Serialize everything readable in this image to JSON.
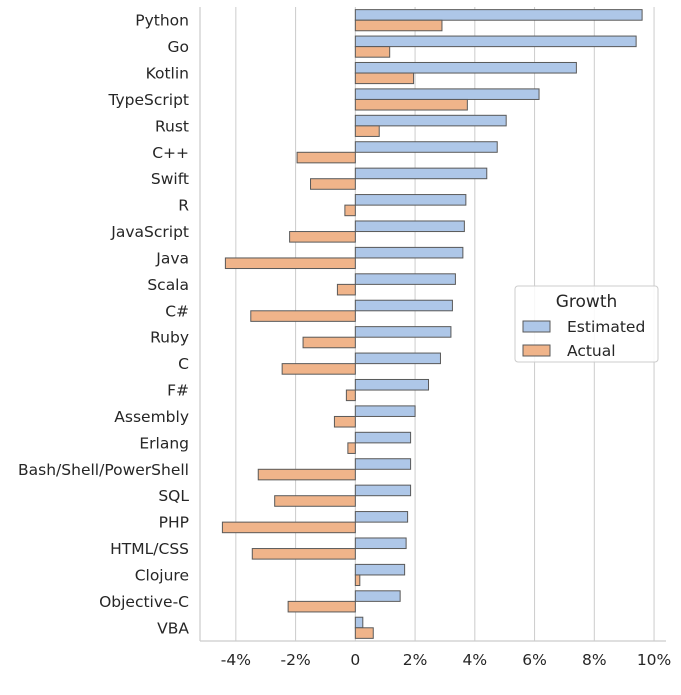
{
  "chart_data": {
    "type": "bar",
    "orientation": "horizontal",
    "categories": [
      "Python",
      "Go",
      "Kotlin",
      "TypeScript",
      "Rust",
      "C++",
      "Swift",
      "R",
      "JavaScript",
      "Java",
      "Scala",
      "C#",
      "Ruby",
      "C",
      "F#",
      "Assembly",
      "Erlang",
      "Bash/Shell/PowerShell",
      "SQL",
      "PHP",
      "HTML/CSS",
      "Clojure",
      "Objective-C",
      "VBA"
    ],
    "series": [
      {
        "name": "Estimated",
        "color": "#aec7e8",
        "values": [
          9.6,
          9.4,
          7.4,
          6.15,
          5.05,
          4.75,
          4.4,
          3.7,
          3.65,
          3.6,
          3.35,
          3.25,
          3.2,
          2.85,
          2.45,
          2.0,
          1.85,
          1.85,
          1.85,
          1.75,
          1.7,
          1.65,
          1.5,
          0.25
        ]
      },
      {
        "name": "Actual",
        "color": "#f0b48a",
        "values": [
          2.9,
          1.15,
          1.95,
          3.75,
          0.8,
          -1.95,
          -1.5,
          -0.35,
          -2.2,
          -4.35,
          -0.6,
          -3.5,
          -1.75,
          -2.45,
          -0.3,
          -0.7,
          -0.25,
          -3.25,
          -2.7,
          -4.45,
          -3.45,
          0.15,
          -2.25,
          0.6
        ]
      }
    ],
    "xlim": [
      -5.2,
      10.4
    ],
    "xticks": [
      -4,
      -2,
      0,
      2,
      4,
      6,
      8,
      10
    ],
    "xtick_labels": [
      "-4%",
      "-2%",
      "0",
      "2%",
      "4%",
      "6%",
      "8%",
      "10%"
    ],
    "xlabel": "",
    "ylabel": "",
    "grid": "vertical",
    "legend": {
      "title": "Growth",
      "placement": "center-right",
      "entries": [
        "Estimated",
        "Actual"
      ]
    },
    "bar_edge_color": "#595959"
  }
}
